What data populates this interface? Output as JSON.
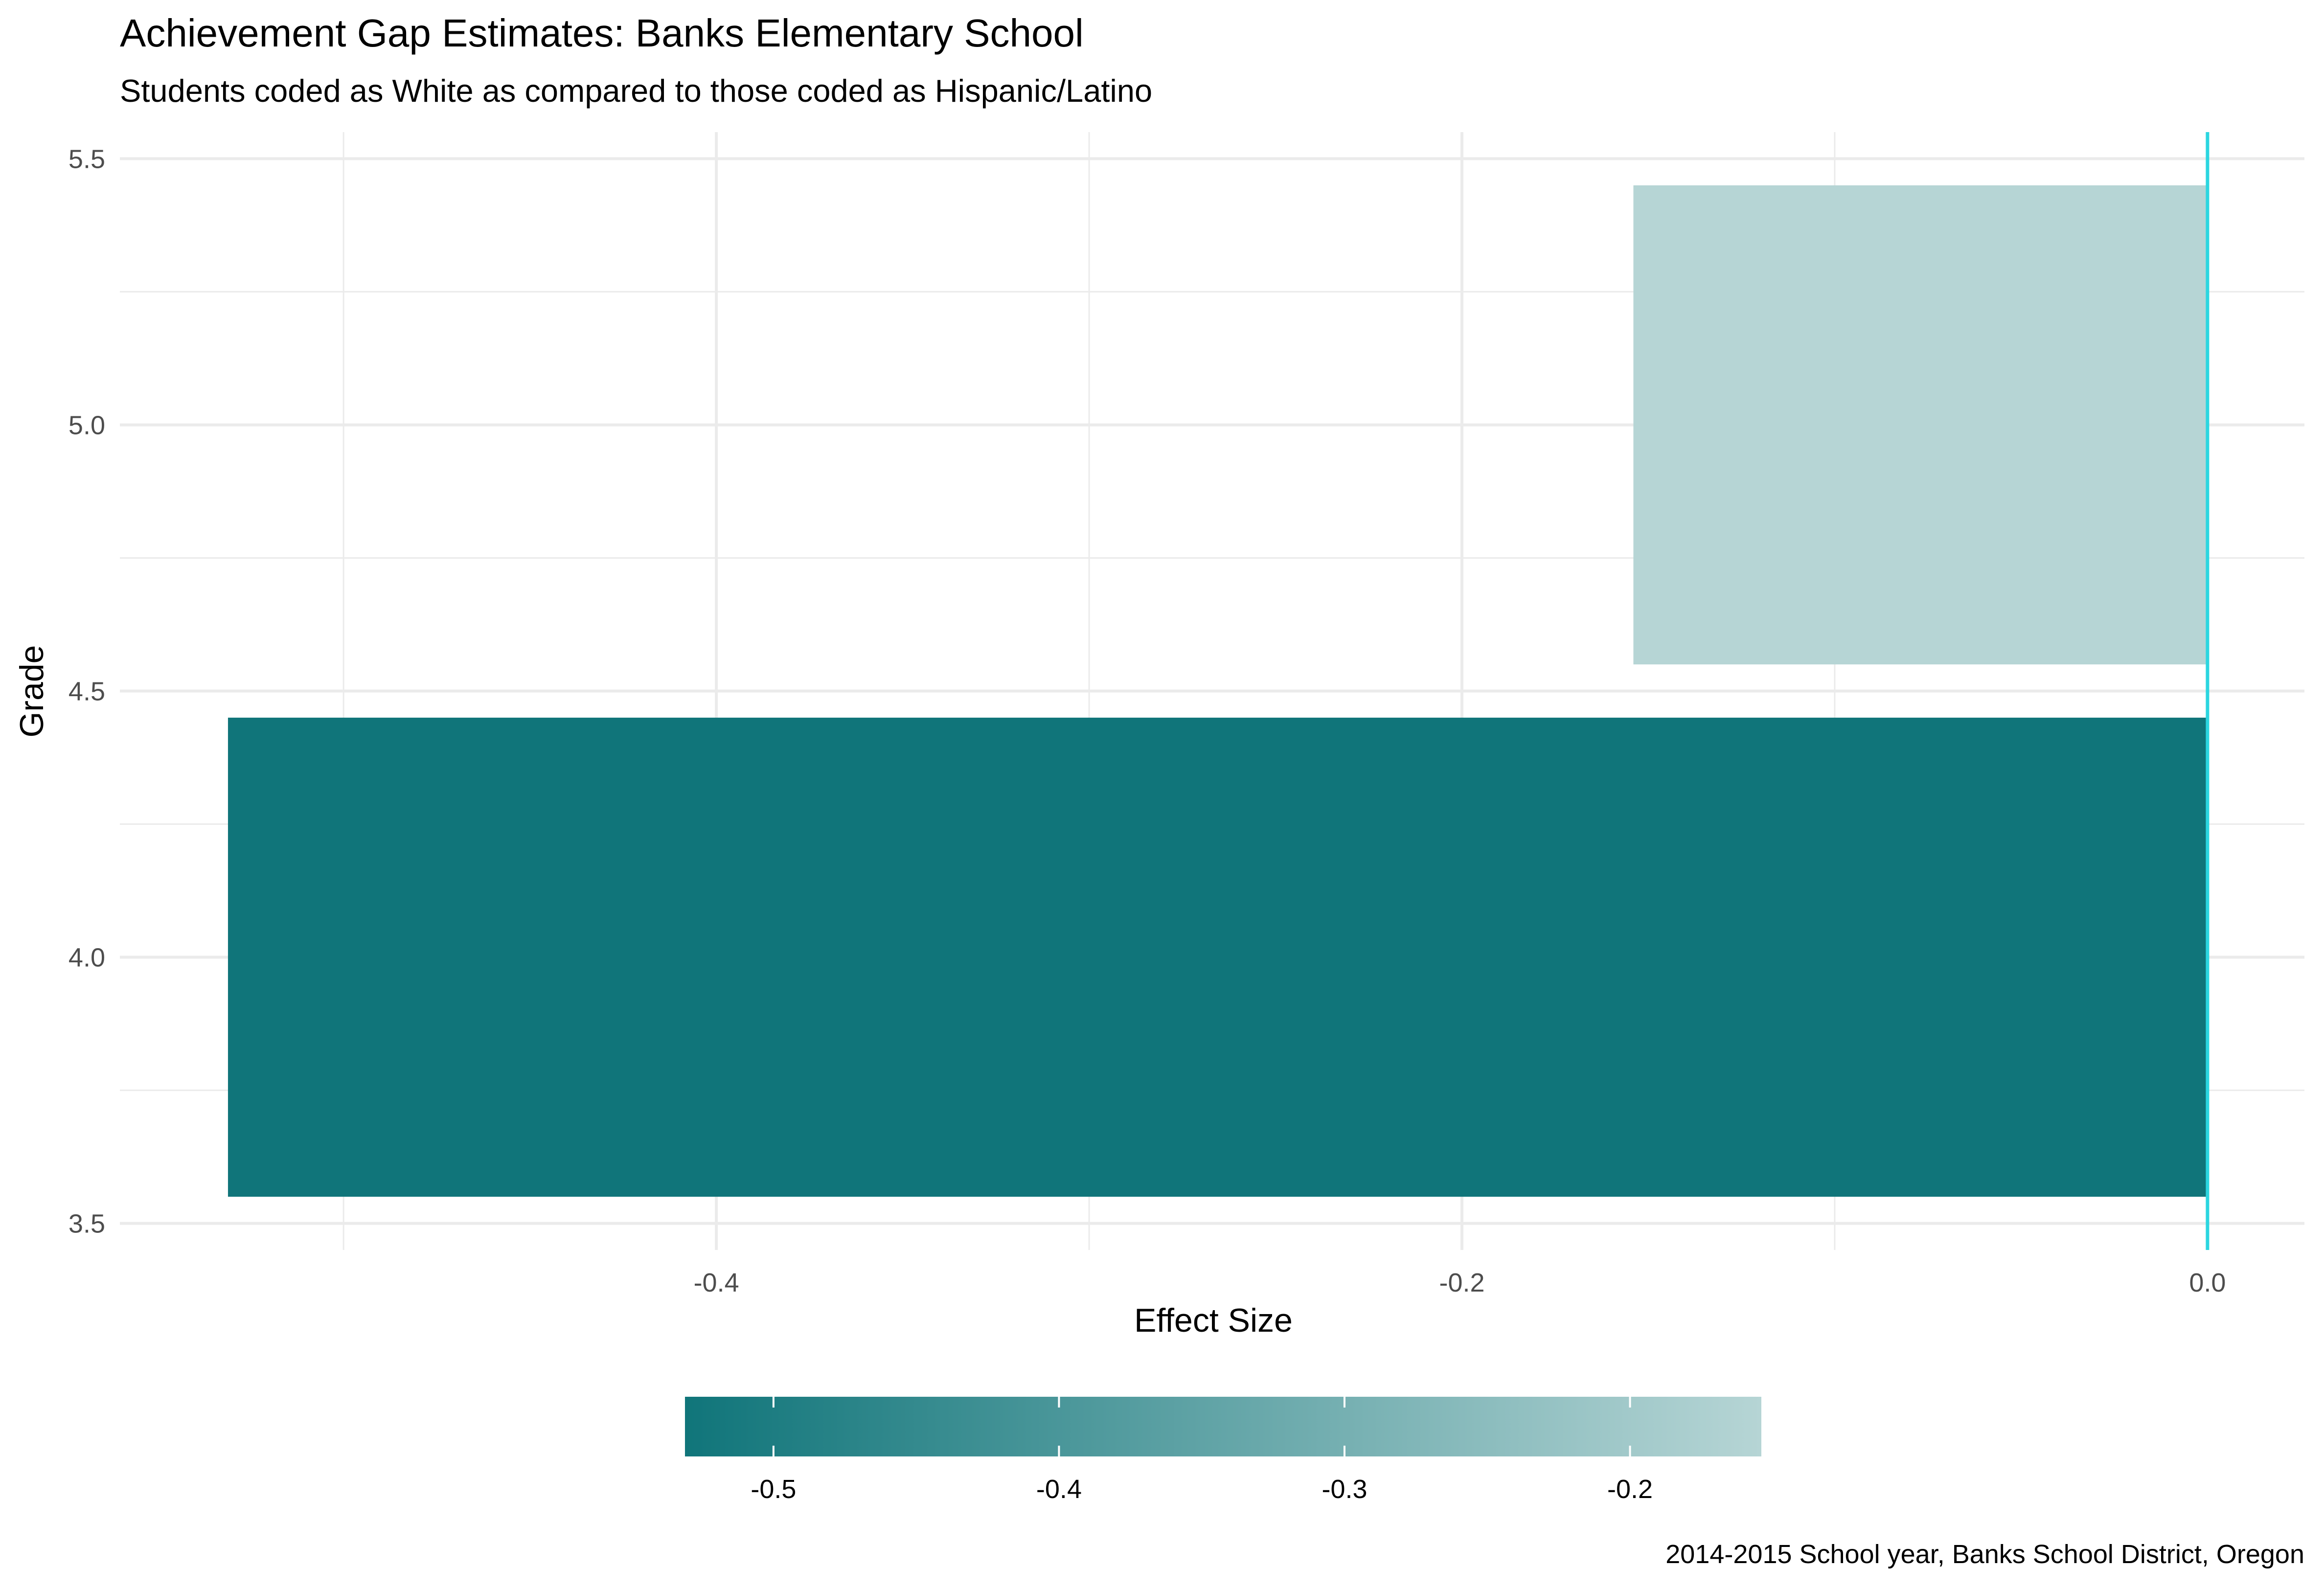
{
  "chart_data": {
    "type": "bar",
    "orientation": "horizontal",
    "title": "Achievement Gap Estimates: Banks Elementary School",
    "subtitle": "Students coded as White as compared to those coded as Hispanic/Latino",
    "xlabel": "Effect Size",
    "ylabel": "Grade",
    "caption": "2014-2015 School year, Banks School District, Oregon",
    "xlim": [
      -0.56,
      0.026
    ],
    "ylim": [
      3.45,
      5.55
    ],
    "x_ticks": [
      "-0.4",
      "-0.2",
      "0.0"
    ],
    "x_tick_values": [
      -0.4,
      -0.2,
      0.0
    ],
    "y_ticks": [
      "3.5",
      "4.0",
      "4.5",
      "5.0",
      "5.5"
    ],
    "y_tick_values": [
      3.5,
      4.0,
      4.5,
      5.0,
      5.5
    ],
    "grid": true,
    "bars": [
      {
        "grade": 4,
        "value": -0.531
      },
      {
        "grade": 5,
        "value": -0.154
      }
    ],
    "reference_line": {
      "x": 0.0,
      "color": "#2bd6e0"
    },
    "legend": {
      "position": "bottom",
      "type": "colorbar",
      "range": [
        -0.531,
        -0.154
      ],
      "color_low": "#10757a",
      "color_high": "#b6d5d5",
      "ticks": [
        "-0.5",
        "-0.4",
        "-0.3",
        "-0.2"
      ],
      "tick_values": [
        -0.5,
        -0.4,
        -0.3,
        -0.2
      ]
    }
  }
}
